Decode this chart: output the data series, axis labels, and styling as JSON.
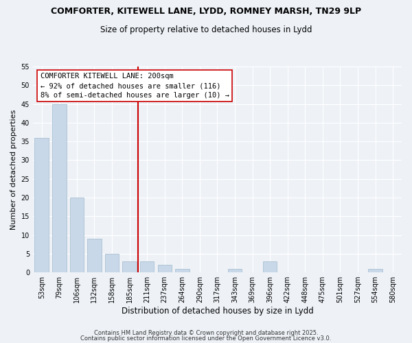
{
  "title_line1": "COMFORTER, KITEWELL LANE, LYDD, ROMNEY MARSH, TN29 9LP",
  "title_line2": "Size of property relative to detached houses in Lydd",
  "xlabel": "Distribution of detached houses by size in Lydd",
  "ylabel": "Number of detached properties",
  "categories": [
    "53sqm",
    "79sqm",
    "106sqm",
    "132sqm",
    "158sqm",
    "185sqm",
    "211sqm",
    "237sqm",
    "264sqm",
    "290sqm",
    "317sqm",
    "343sqm",
    "369sqm",
    "396sqm",
    "422sqm",
    "448sqm",
    "475sqm",
    "501sqm",
    "527sqm",
    "554sqm",
    "580sqm"
  ],
  "values": [
    36,
    45,
    20,
    9,
    5,
    3,
    3,
    2,
    1,
    0,
    0,
    1,
    0,
    3,
    0,
    0,
    0,
    0,
    0,
    1,
    0
  ],
  "bar_color": "#c8d8e8",
  "bar_edge_color": "#a0b8cc",
  "vline_x": 5.5,
  "vline_color": "#cc0000",
  "annotation_title": "COMFORTER KITEWELL LANE: 200sqm",
  "annotation_line1": "← 92% of detached houses are smaller (116)",
  "annotation_line2": "8% of semi-detached houses are larger (10) →",
  "ylim": [
    0,
    55
  ],
  "yticks": [
    0,
    5,
    10,
    15,
    20,
    25,
    30,
    35,
    40,
    45,
    50,
    55
  ],
  "background_color": "#eef2f7",
  "footnote1": "Contains HM Land Registry data © Crown copyright and database right 2025.",
  "footnote2": "Contains public sector information licensed under the Open Government Licence v3.0."
}
